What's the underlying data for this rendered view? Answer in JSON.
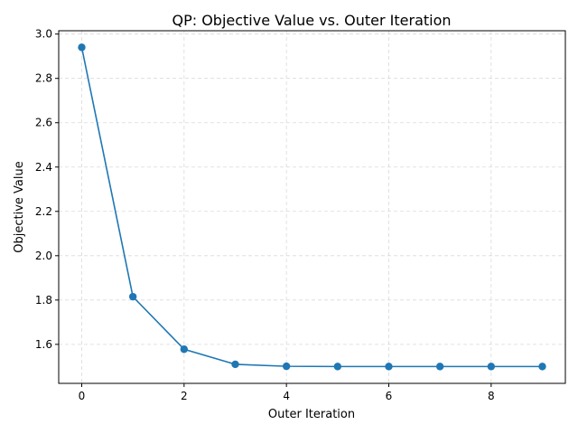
{
  "chart_data": {
    "type": "line",
    "title": "QP: Objective Value vs. Outer Iteration",
    "xlabel": "Outer Iteration",
    "ylabel": "Objective Value",
    "xlim": [
      -0.45,
      9.45
    ],
    "ylim": [
      1.424,
      3.015
    ],
    "grid": true,
    "x_ticks": [
      0,
      2,
      4,
      6,
      8
    ],
    "y_ticks": [
      1.6,
      1.8,
      2.0,
      2.2,
      2.4,
      2.6,
      2.8,
      3.0
    ],
    "y_tick_labels": [
      "1.6",
      "1.8",
      "2.0",
      "2.2",
      "2.4",
      "2.6",
      "2.8",
      "3.0"
    ],
    "series": [
      {
        "color": "#1f77b4",
        "marker": "circle",
        "x": [
          0,
          1,
          2,
          3,
          4,
          5,
          6,
          7,
          8,
          9
        ],
        "y": [
          2.94,
          1.815,
          1.578,
          1.51,
          1.501,
          1.5,
          1.5,
          1.5,
          1.5,
          1.5
        ]
      }
    ]
  }
}
